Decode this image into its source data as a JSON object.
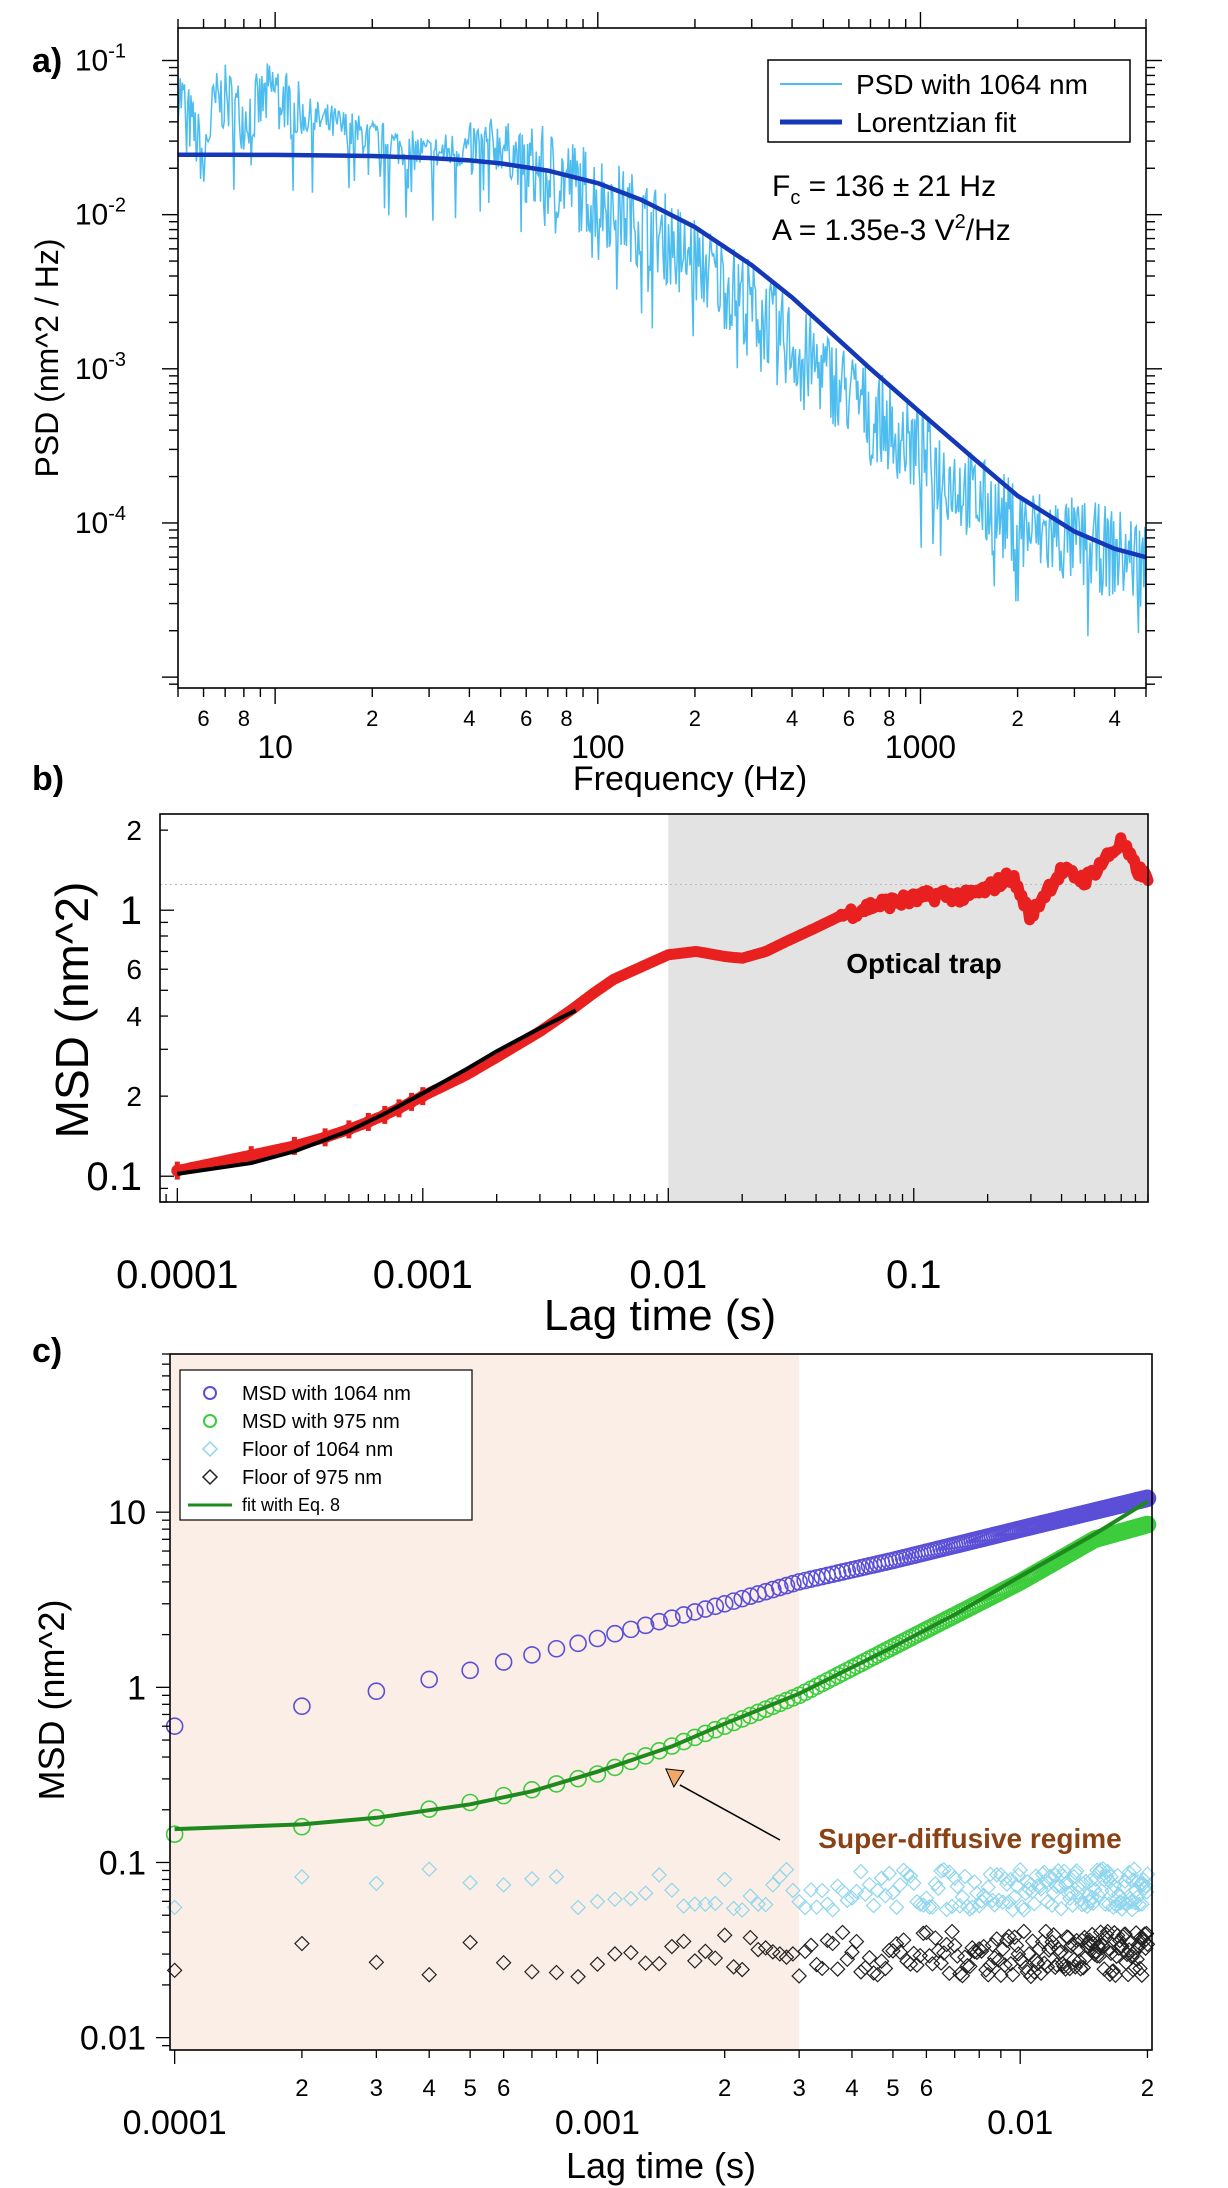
{
  "colors": {
    "psd_raw": "#4dbdf0",
    "psd_fit": "#1538b8",
    "msd_b": "#e82020",
    "fit_b": "#000000",
    "trap_shade": "#e3e3e3",
    "c_1064": "#5a4fd6",
    "c_975": "#3ccc3c",
    "c_floor1064": "#8fd6ee",
    "c_floor975": "#222222",
    "c_fit": "#1e8a1e",
    "c_shade": "#fbeee6",
    "annotation": "#8a4214",
    "arrow_fill": "#f0a868"
  },
  "chart_data": [
    {
      "id": "a",
      "panel_label": "a)",
      "type": "line",
      "log_x": true,
      "log_y": true,
      "xlabel": "Frequency (Hz)",
      "ylabel": "PSD (nm^2 / Hz)",
      "xlim": [
        5,
        5000
      ],
      "ylim": [
        8.5e-06,
        0.1625
      ],
      "major_ticks": {
        "x": [
          {
            "v": 10,
            "label": "10"
          },
          {
            "v": 100,
            "label": "100"
          },
          {
            "v": 1000,
            "label": "1000"
          }
        ],
        "y": [
          {
            "v": 0.1,
            "mant": "10",
            "exp": "-1"
          },
          {
            "v": 0.01,
            "mant": "10",
            "exp": "-2"
          },
          {
            "v": 0.001,
            "mant": "10",
            "exp": "-3"
          },
          {
            "v": 0.0001,
            "mant": "10",
            "exp": "-4"
          }
        ]
      },
      "minor_tick_labels": {
        "x": [
          {
            "v": 6,
            "label": "6"
          },
          {
            "v": 8,
            "label": "8"
          },
          {
            "v": 20,
            "label": "2"
          },
          {
            "v": 40,
            "label": "4"
          },
          {
            "v": 60,
            "label": "6"
          },
          {
            "v": 80,
            "label": "8"
          },
          {
            "v": 200,
            "label": "2"
          },
          {
            "v": 400,
            "label": "4"
          },
          {
            "v": 600,
            "label": "6"
          },
          {
            "v": 800,
            "label": "8"
          },
          {
            "v": 2000,
            "label": "2"
          },
          {
            "v": 4000,
            "label": "4"
          }
        ]
      },
      "series": [
        {
          "name": "PSD with 1064 nm",
          "style": "noisy-line",
          "color_key": "psd_raw",
          "x": [
            5,
            5.5,
            6,
            6.5,
            7,
            8,
            9,
            10,
            12,
            15,
            20,
            30,
            40,
            50,
            60,
            80,
            100,
            150,
            200,
            300,
            400,
            600,
            800,
            1000,
            1500,
            2000,
            3000,
            5000
          ],
          "y": [
            0.07,
            0.04,
            0.025,
            0.055,
            0.06,
            0.045,
            0.055,
            0.07,
            0.045,
            0.04,
            0.032,
            0.025,
            0.028,
            0.03,
            0.022,
            0.018,
            0.014,
            0.0085,
            0.0055,
            0.0028,
            0.0015,
            0.00075,
            0.00045,
            0.0003,
            0.00015,
            0.0001,
            8e-05,
            6e-05
          ]
        },
        {
          "name": "Lorentzian fit",
          "style": "line",
          "color_key": "psd_fit",
          "x": [
            5,
            7,
            10,
            15,
            20,
            30,
            40,
            50,
            70,
            100,
            136,
            150,
            200,
            300,
            400,
            500,
            700,
            1000,
            1500,
            2000,
            3000,
            4000,
            5000
          ],
          "y": [
            0.0245,
            0.0245,
            0.0244,
            0.0242,
            0.024,
            0.0233,
            0.0225,
            0.0215,
            0.0193,
            0.016,
            0.0125,
            0.0113,
            0.0083,
            0.0047,
            0.0029,
            0.0019,
            0.001,
            0.00052,
            0.00025,
            0.00015,
            8.8e-05,
            6.8e-05,
            6e-05
          ]
        }
      ],
      "legend": {
        "position": "top-right",
        "entries": [
          "PSD with 1064 nm",
          "Lorentzian fit"
        ]
      },
      "annotations": [
        {
          "text_a": "F",
          "text_sub": "c",
          "text_b": " = 136 ± 21 Hz"
        },
        {
          "text_a": "A = 1.35e-3 V",
          "text_sup": "2",
          "text_b": "/Hz"
        }
      ]
    },
    {
      "id": "b",
      "panel_label": "b)",
      "type": "scatter",
      "log_x": true,
      "log_y": true,
      "xlabel": "Lag time (s)",
      "ylabel": "MSD (nm^2)",
      "xlim": [
        8.5e-05,
        0.9
      ],
      "ylim": [
        0.08,
        2.3
      ],
      "tick_labels": {
        "x": [
          {
            "v": 0.0001,
            "label": "0.0001"
          },
          {
            "v": 0.001,
            "label": "0.001"
          },
          {
            "v": 0.01,
            "label": "0.01"
          },
          {
            "v": 0.1,
            "label": "0.1"
          }
        ],
        "y": [
          {
            "v": 0.1,
            "label": "0.1"
          },
          {
            "v": 0.2,
            "label": "2"
          },
          {
            "v": 0.4,
            "label": "4"
          },
          {
            "v": 0.6,
            "label": "6"
          },
          {
            "v": 1,
            "label": "1"
          },
          {
            "v": 2,
            "label": "2"
          }
        ]
      },
      "reference_line_y": 1.25,
      "shaded_region": {
        "x_from": 0.01,
        "x_to": 0.9,
        "label": "Optical trap"
      },
      "series": [
        {
          "name": "MSD",
          "style": "thick-band",
          "color_key": "msd_b",
          "x": [
            0.0001,
            0.0002,
            0.0003,
            0.0004,
            0.0005,
            0.0006,
            0.0007,
            0.0008,
            0.001,
            0.0015,
            0.002,
            0.003,
            0.004,
            0.005,
            0.006,
            0.008,
            0.01,
            0.013,
            0.017,
            0.02,
            0.025,
            0.03,
            0.04,
            0.05,
            0.07,
            0.1,
            0.13,
            0.16,
            0.2,
            0.25,
            0.3,
            0.35,
            0.4,
            0.5,
            0.6,
            0.7,
            0.8,
            0.9
          ],
          "y": [
            0.105,
            0.12,
            0.13,
            0.14,
            0.15,
            0.16,
            0.17,
            0.18,
            0.2,
            0.24,
            0.28,
            0.35,
            0.42,
            0.49,
            0.55,
            0.62,
            0.68,
            0.7,
            0.67,
            0.66,
            0.7,
            0.76,
            0.86,
            0.95,
            1.05,
            1.1,
            1.15,
            1.12,
            1.2,
            1.35,
            0.95,
            1.2,
            1.4,
            1.3,
            1.55,
            1.8,
            1.45,
            1.3
          ]
        },
        {
          "name": "fit",
          "style": "line",
          "color_key": "fit_b",
          "x": [
            0.0001,
            0.0002,
            0.0003,
            0.0005,
            0.0007,
            0.001,
            0.0015,
            0.002,
            0.003,
            0.0042
          ],
          "y": [
            0.102,
            0.112,
            0.124,
            0.148,
            0.172,
            0.205,
            0.252,
            0.295,
            0.36,
            0.42
          ]
        }
      ]
    },
    {
      "id": "c",
      "panel_label": "c)",
      "type": "scatter",
      "log_x": true,
      "log_y": true,
      "xlabel": "Lag time (s)",
      "ylabel": "MSD (nm^2)",
      "xlim": [
        9.75e-05,
        0.0205
      ],
      "ylim": [
        0.0085,
        80
      ],
      "tick_labels": {
        "x": [
          {
            "v": 0.0001,
            "label": "0.0001",
            "major": true
          },
          {
            "v": 0.0002,
            "label": "2"
          },
          {
            "v": 0.0003,
            "label": "3"
          },
          {
            "v": 0.0004,
            "label": "4"
          },
          {
            "v": 0.0005,
            "label": "5"
          },
          {
            "v": 0.0006,
            "label": "6"
          },
          {
            "v": 0.001,
            "label": "0.001",
            "major": true
          },
          {
            "v": 0.002,
            "label": "2"
          },
          {
            "v": 0.003,
            "label": "3"
          },
          {
            "v": 0.004,
            "label": "4"
          },
          {
            "v": 0.005,
            "label": "5"
          },
          {
            "v": 0.006,
            "label": "6"
          },
          {
            "v": 0.01,
            "label": "0.01",
            "major": true
          },
          {
            "v": 0.02,
            "label": "2"
          }
        ],
        "y": [
          {
            "v": 0.01,
            "label": "0.01"
          },
          {
            "v": 0.1,
            "label": "0.1"
          },
          {
            "v": 1,
            "label": "1"
          },
          {
            "v": 10,
            "label": "10"
          }
        ]
      },
      "shaded_region": {
        "x_from": 9.75e-05,
        "x_to": 0.003
      },
      "series": [
        {
          "name": "MSD with 1064 nm",
          "marker": "circle",
          "color_key": "c_1064",
          "x_range": [
            0.0001,
            0.02
          ],
          "y_anchors": [
            [
              0.0001,
              0.6
            ],
            [
              0.0002,
              0.78
            ],
            [
              0.0003,
              0.95
            ],
            [
              0.0005,
              1.25
            ],
            [
              0.001,
              1.9
            ],
            [
              0.002,
              3.0
            ],
            [
              0.003,
              4.0
            ],
            [
              0.005,
              5.3
            ],
            [
              0.01,
              8.0
            ],
            [
              0.02,
              12
            ]
          ]
        },
        {
          "name": "MSD with 975 nm",
          "marker": "circle",
          "color_key": "c_975",
          "x_range": [
            0.0001,
            0.02
          ],
          "y_anchors": [
            [
              0.0001,
              0.145
            ],
            [
              0.0002,
              0.16
            ],
            [
              0.0003,
              0.18
            ],
            [
              0.0005,
              0.22
            ],
            [
              0.0007,
              0.26
            ],
            [
              0.001,
              0.32
            ],
            [
              0.002,
              0.6
            ],
            [
              0.003,
              0.9
            ],
            [
              0.005,
              1.7
            ],
            [
              0.01,
              4.0
            ],
            [
              0.015,
              7.0
            ],
            [
              0.02,
              8.5
            ]
          ]
        },
        {
          "name": "Floor of 1064 nm",
          "marker": "diamond",
          "color_key": "c_floor1064",
          "x_range": [
            0.0001,
            0.02
          ],
          "y_anchors": [
            [
              0.0001,
              0.07
            ],
            [
              0.02,
              0.07
            ]
          ]
        },
        {
          "name": "Floor of 975 nm",
          "marker": "diamond",
          "color_key": "c_floor975",
          "x_range": [
            0.0001,
            0.02
          ],
          "y_anchors": [
            [
              0.0001,
              0.03
            ],
            [
              0.02,
              0.03
            ]
          ]
        },
        {
          "name": "fit with Eq. 8",
          "style": "line",
          "color_key": "c_fit",
          "x": [
            0.0001,
            0.0002,
            0.0003,
            0.0005,
            0.0007,
            0.001,
            0.0015,
            0.002,
            0.003,
            0.005,
            0.007,
            0.01,
            0.015,
            0.02
          ],
          "y": [
            0.155,
            0.165,
            0.18,
            0.215,
            0.255,
            0.33,
            0.46,
            0.62,
            0.92,
            1.7,
            2.6,
            4.3,
            7.5,
            11.5
          ]
        }
      ],
      "legend": {
        "position": "top-left",
        "entries": [
          "MSD with 1064 nm",
          "MSD with 975 nm",
          "Floor of 1064 nm",
          "Floor of 975 nm",
          "fit with Eq. 8"
        ]
      },
      "annotation": {
        "text": "Super-diffusive regime",
        "arrow_to": [
          0.0015,
          0.3
        ]
      }
    }
  ]
}
